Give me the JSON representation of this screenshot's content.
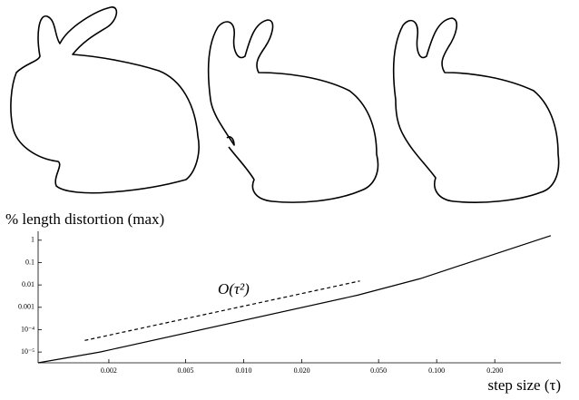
{
  "chart_data": {
    "type": "line",
    "ylabel": "% length distortion (max)",
    "xlabel": "step size (τ)",
    "annotation": "O(τ²)",
    "log_x": true,
    "log_y": true,
    "xlim": [
      0.00086,
      0.44
    ],
    "ylim": [
      3.3e-06,
      2.5
    ],
    "xticks": [
      0.002,
      {
        "value": 0.005,
        "label": "0.005"
      },
      {
        "value": 0.01,
        "label": "0.010"
      },
      {
        "value": 0.02,
        "label": "0.020"
      },
      {
        "value": 0.05,
        "label": "0.050"
      },
      {
        "value": 0.1,
        "label": "0.100"
      },
      {
        "value": 0.2,
        "label": "0.200"
      }
    ],
    "yticks": [
      1,
      0.1,
      0.01,
      0.001,
      {
        "value": 0.0001,
        "label": "10⁻⁴"
      },
      {
        "value": 1e-05,
        "label": "10⁻⁵"
      }
    ],
    "series": [
      {
        "color": "#000000",
        "dashed": false,
        "x": [
          0.00086,
          0.0018,
          0.039,
          0.082,
          0.39
        ],
        "values": [
          3.3e-06,
          1e-05,
          0.0035,
          0.019,
          1.6
        ]
      },
      {
        "color": "#000000",
        "dashed": true,
        "x": [
          0.0015,
          0.04
        ],
        "values": [
          3.3e-05,
          0.015
        ]
      }
    ]
  }
}
